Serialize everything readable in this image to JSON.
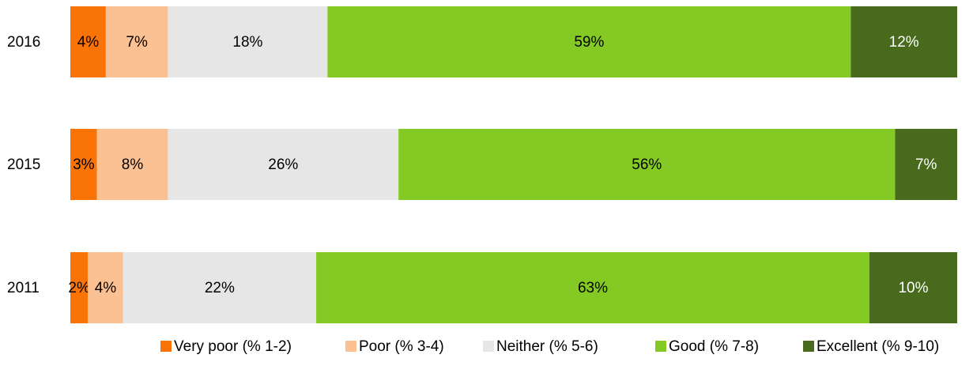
{
  "chart_data": {
    "type": "bar",
    "orientation": "horizontal",
    "stacked": true,
    "percent_stacked": true,
    "categories": [
      "2016",
      "2015",
      "2011"
    ],
    "series": [
      {
        "name": "Very poor (% 1-2)",
        "color": "#F97306",
        "values": [
          4,
          3,
          2
        ]
      },
      {
        "name": "Poor (% 3-4)",
        "color": "#FBC193",
        "values": [
          7,
          8,
          4
        ]
      },
      {
        "name": "Neither (% 5-6)",
        "color": "#E6E6E6",
        "values": [
          18,
          26,
          22
        ]
      },
      {
        "name": "Good (% 7-8)",
        "color": "#84C924",
        "values": [
          59,
          56,
          63
        ]
      },
      {
        "name": "Excellent (% 9-10)",
        "color": "#476A1C",
        "values": [
          12,
          7,
          10
        ]
      }
    ],
    "data_labels": [
      [
        "4%",
        "7%",
        "18%",
        "59%",
        "12%"
      ],
      [
        "3%",
        "8%",
        "26%",
        "56%",
        "7%"
      ],
      [
        "2%",
        "4%",
        "22%",
        "63%",
        "10%"
      ]
    ],
    "legend_position": "bottom",
    "grid": false
  }
}
